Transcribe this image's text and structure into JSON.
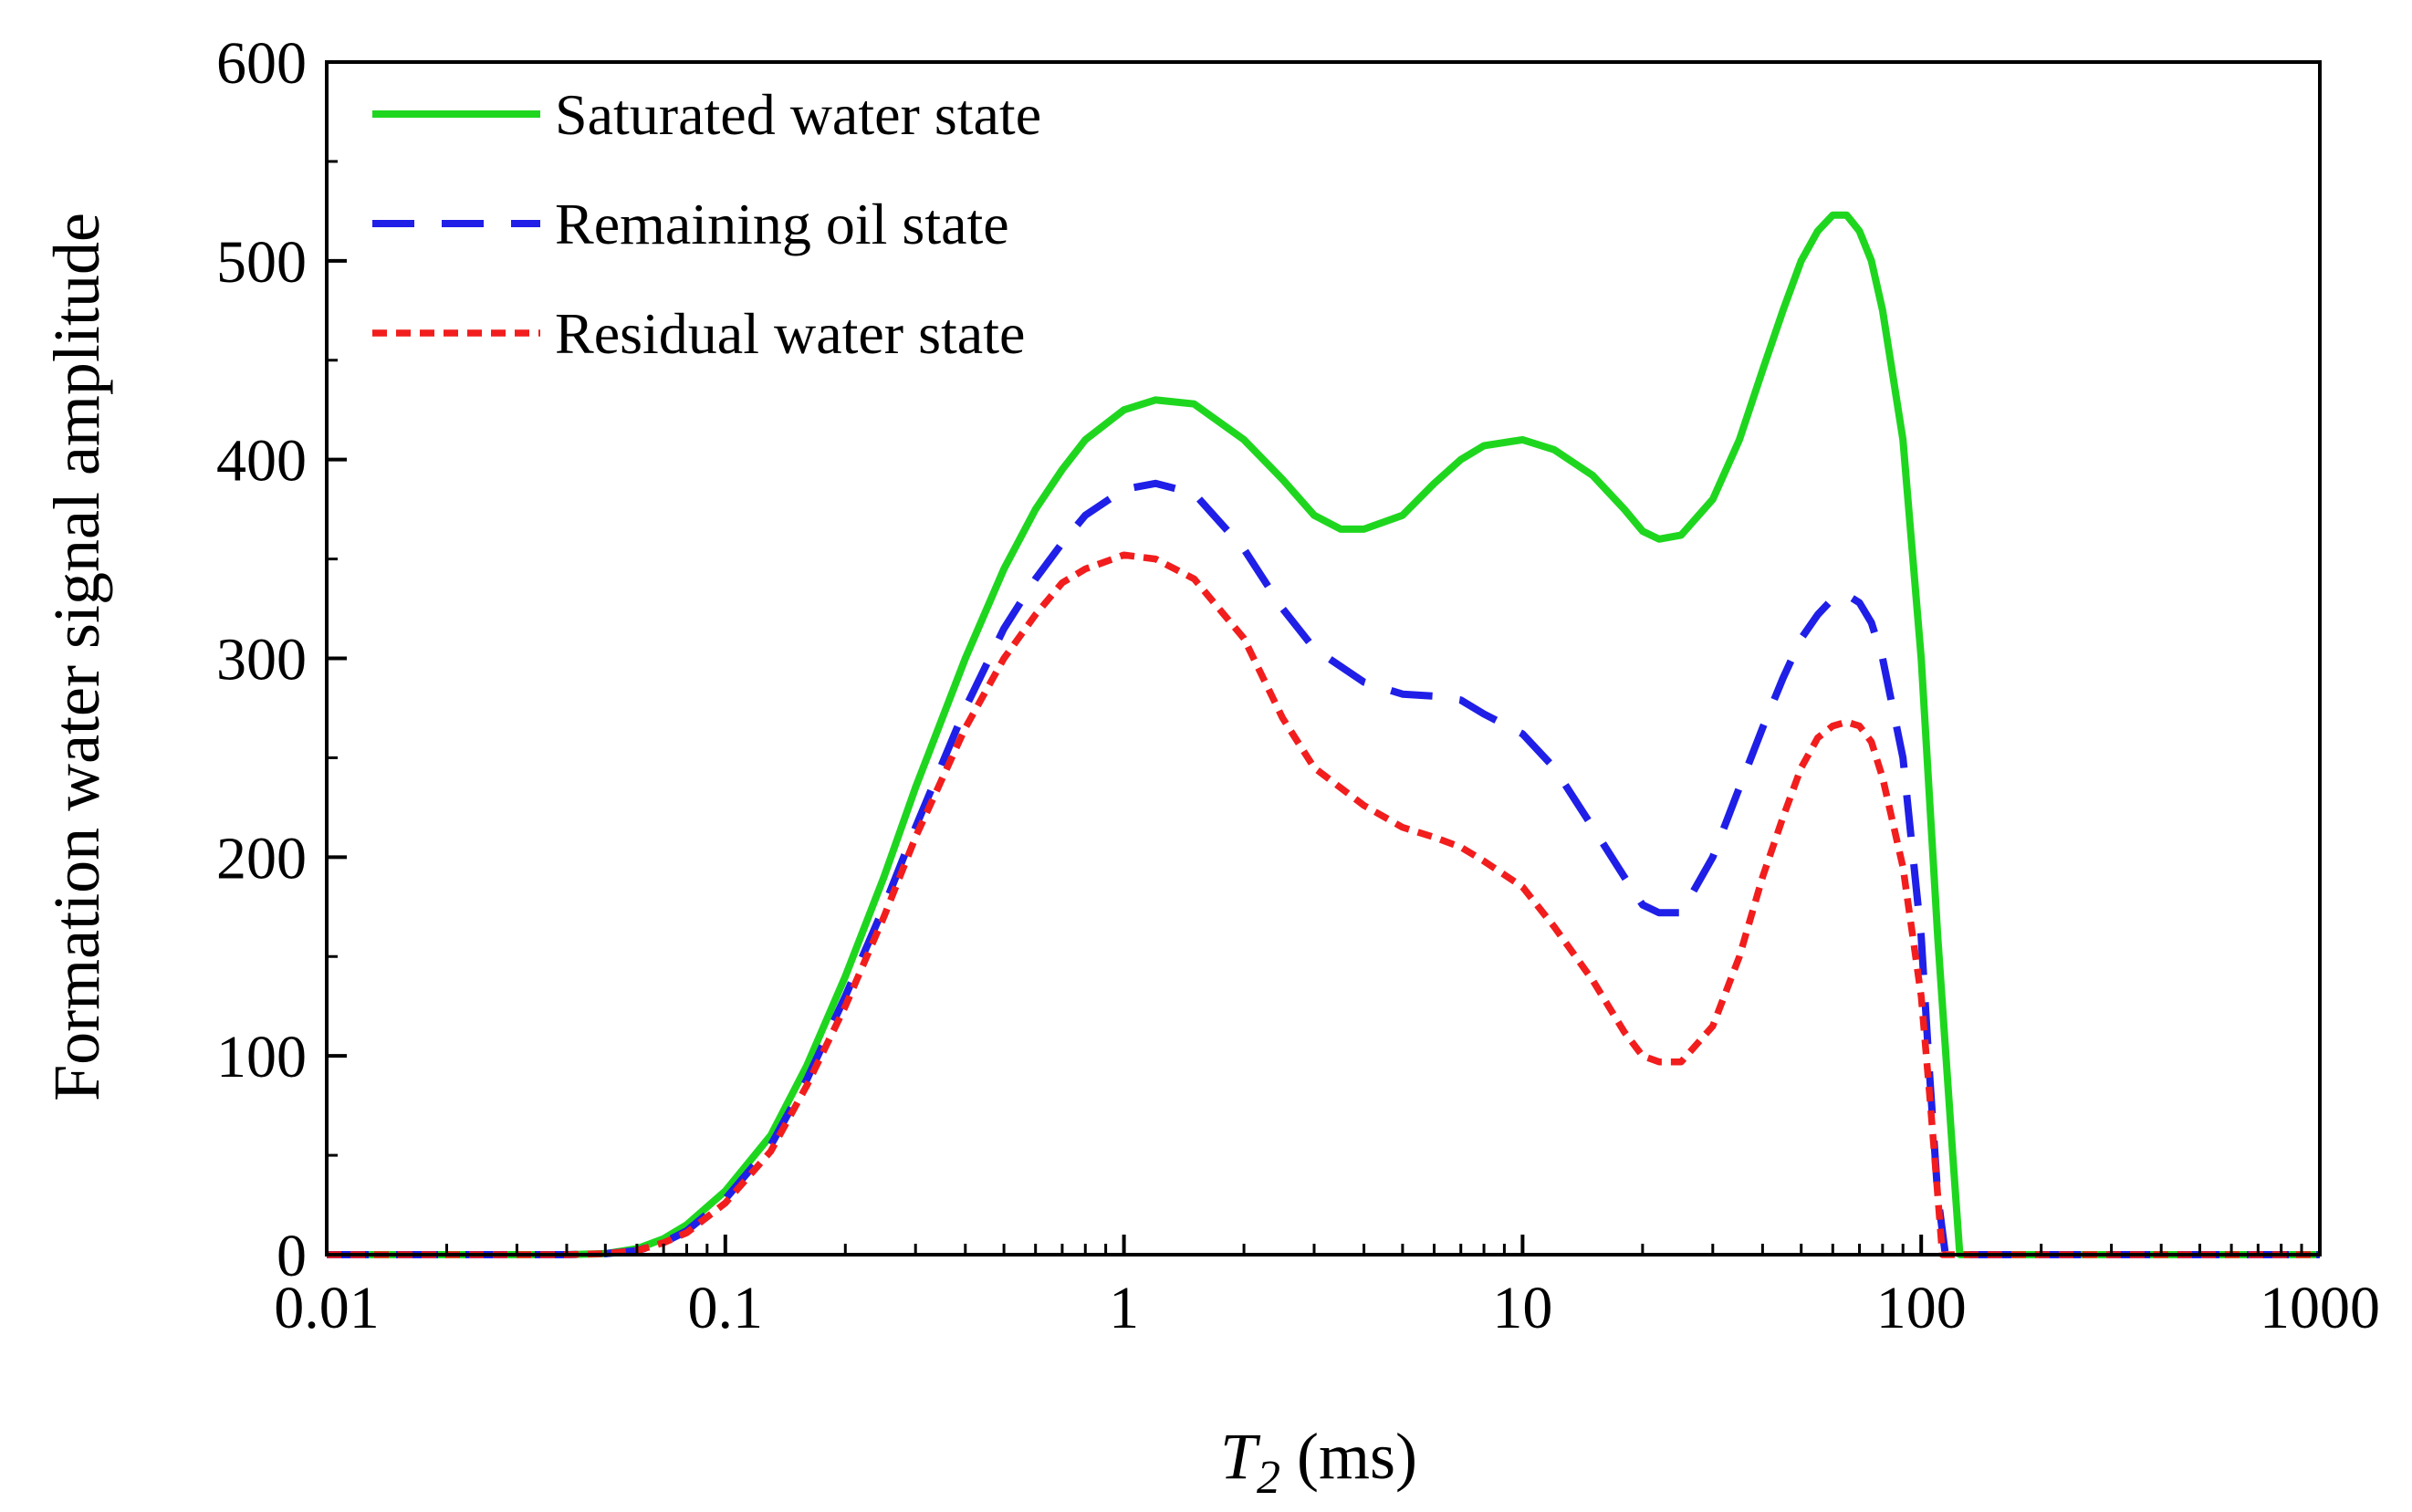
{
  "chart_data": {
    "type": "line",
    "xscale": "log",
    "xlim": [
      0.01,
      1000
    ],
    "ylim": [
      0,
      600
    ],
    "xticks": [
      0.01,
      0.1,
      1,
      10,
      100,
      1000
    ],
    "xtick_labels": [
      "0.01",
      "0.1",
      "1",
      "10",
      "100",
      "1000"
    ],
    "yticks": [
      0,
      100,
      200,
      300,
      400,
      500,
      600
    ],
    "ytick_labels": [
      "0",
      "100",
      "200",
      "300",
      "400",
      "500",
      "600"
    ],
    "xlabel_symbol": "T",
    "xlabel_subscript": "2",
    "xlabel_unit": " (ms)",
    "ylabel": "Formation water signal amplitude",
    "legend_position": "top-left",
    "series": [
      {
        "name": "Saturated water state",
        "color": "#1fd61f",
        "style": "solid",
        "points": [
          [
            0.01,
            0
          ],
          [
            0.04,
            0
          ],
          [
            0.05,
            0.5
          ],
          [
            0.06,
            3
          ],
          [
            0.07,
            8
          ],
          [
            0.08,
            15
          ],
          [
            0.1,
            32
          ],
          [
            0.13,
            60
          ],
          [
            0.16,
            95
          ],
          [
            0.2,
            140
          ],
          [
            0.25,
            190
          ],
          [
            0.3,
            235
          ],
          [
            0.4,
            300
          ],
          [
            0.5,
            345
          ],
          [
            0.6,
            375
          ],
          [
            0.7,
            395
          ],
          [
            0.8,
            410
          ],
          [
            1.0,
            425
          ],
          [
            1.2,
            430
          ],
          [
            1.5,
            428
          ],
          [
            2.0,
            410
          ],
          [
            2.5,
            390
          ],
          [
            3.0,
            372
          ],
          [
            3.5,
            365
          ],
          [
            4.0,
            365
          ],
          [
            5.0,
            372
          ],
          [
            6.0,
            388
          ],
          [
            7.0,
            400
          ],
          [
            8.0,
            407
          ],
          [
            10.0,
            410
          ],
          [
            12.0,
            405
          ],
          [
            15.0,
            392
          ],
          [
            18.0,
            375
          ],
          [
            20.0,
            364
          ],
          [
            22.0,
            360
          ],
          [
            25.0,
            362
          ],
          [
            30.0,
            380
          ],
          [
            35.0,
            410
          ],
          [
            40.0,
            445
          ],
          [
            45.0,
            475
          ],
          [
            50.0,
            500
          ],
          [
            55.0,
            515
          ],
          [
            60.0,
            523
          ],
          [
            65.0,
            523
          ],
          [
            70.0,
            515
          ],
          [
            75.0,
            500
          ],
          [
            80.0,
            475
          ],
          [
            90.0,
            410
          ],
          [
            100.0,
            300
          ],
          [
            110.0,
            160
          ],
          [
            120.0,
            50
          ],
          [
            125.0,
            0
          ],
          [
            1000,
            0
          ]
        ]
      },
      {
        "name": "Remaining oil state",
        "color": "#1f1fe8",
        "style": "dashed",
        "points": [
          [
            0.01,
            0
          ],
          [
            0.04,
            0
          ],
          [
            0.05,
            0.5
          ],
          [
            0.06,
            2
          ],
          [
            0.07,
            6
          ],
          [
            0.08,
            12
          ],
          [
            0.1,
            28
          ],
          [
            0.13,
            55
          ],
          [
            0.16,
            88
          ],
          [
            0.2,
            130
          ],
          [
            0.25,
            175
          ],
          [
            0.3,
            215
          ],
          [
            0.4,
            275
          ],
          [
            0.5,
            315
          ],
          [
            0.6,
            340
          ],
          [
            0.7,
            358
          ],
          [
            0.8,
            372
          ],
          [
            1.0,
            385
          ],
          [
            1.2,
            388
          ],
          [
            1.5,
            383
          ],
          [
            2.0,
            355
          ],
          [
            2.5,
            325
          ],
          [
            3.0,
            305
          ],
          [
            4.0,
            288
          ],
          [
            5.0,
            282
          ],
          [
            6.0,
            281
          ],
          [
            7.0,
            279
          ],
          [
            8.0,
            272
          ],
          [
            10.0,
            262
          ],
          [
            12.0,
            245
          ],
          [
            15.0,
            215
          ],
          [
            18.0,
            190
          ],
          [
            20.0,
            176
          ],
          [
            22.0,
            172
          ],
          [
            25.0,
            172
          ],
          [
            30.0,
            200
          ],
          [
            35.0,
            235
          ],
          [
            40.0,
            265
          ],
          [
            45.0,
            290
          ],
          [
            50.0,
            310
          ],
          [
            55.0,
            322
          ],
          [
            60.0,
            330
          ],
          [
            65.0,
            332
          ],
          [
            70.0,
            328
          ],
          [
            75.0,
            318
          ],
          [
            80.0,
            300
          ],
          [
            90.0,
            250
          ],
          [
            100.0,
            160
          ],
          [
            105.0,
            90
          ],
          [
            110.0,
            30
          ],
          [
            115.0,
            0
          ],
          [
            1000,
            0
          ]
        ]
      },
      {
        "name": "Residual water state",
        "color": "#f21d1d",
        "style": "dotted",
        "points": [
          [
            0.01,
            0
          ],
          [
            0.04,
            0
          ],
          [
            0.05,
            0.5
          ],
          [
            0.06,
            2
          ],
          [
            0.07,
            6
          ],
          [
            0.08,
            11
          ],
          [
            0.1,
            26
          ],
          [
            0.13,
            52
          ],
          [
            0.16,
            85
          ],
          [
            0.2,
            125
          ],
          [
            0.25,
            170
          ],
          [
            0.3,
            210
          ],
          [
            0.4,
            265
          ],
          [
            0.5,
            300
          ],
          [
            0.6,
            322
          ],
          [
            0.7,
            338
          ],
          [
            0.8,
            345
          ],
          [
            1.0,
            352
          ],
          [
            1.2,
            350
          ],
          [
            1.5,
            340
          ],
          [
            2.0,
            310
          ],
          [
            2.5,
            270
          ],
          [
            3.0,
            245
          ],
          [
            4.0,
            226
          ],
          [
            5.0,
            215
          ],
          [
            6.0,
            210
          ],
          [
            7.0,
            205
          ],
          [
            8.0,
            198
          ],
          [
            10.0,
            185
          ],
          [
            12.0,
            165
          ],
          [
            15.0,
            138
          ],
          [
            18.0,
            112
          ],
          [
            20.0,
            100
          ],
          [
            22.0,
            97
          ],
          [
            25.0,
            97
          ],
          [
            30.0,
            115
          ],
          [
            35.0,
            150
          ],
          [
            40.0,
            190
          ],
          [
            45.0,
            220
          ],
          [
            50.0,
            245
          ],
          [
            55.0,
            260
          ],
          [
            60.0,
            266
          ],
          [
            65.0,
            268
          ],
          [
            70.0,
            266
          ],
          [
            75.0,
            258
          ],
          [
            80.0,
            240
          ],
          [
            90.0,
            195
          ],
          [
            100.0,
            130
          ],
          [
            105.0,
            80
          ],
          [
            110.0,
            30
          ],
          [
            113.0,
            0
          ],
          [
            1000,
            0
          ]
        ]
      }
    ]
  }
}
